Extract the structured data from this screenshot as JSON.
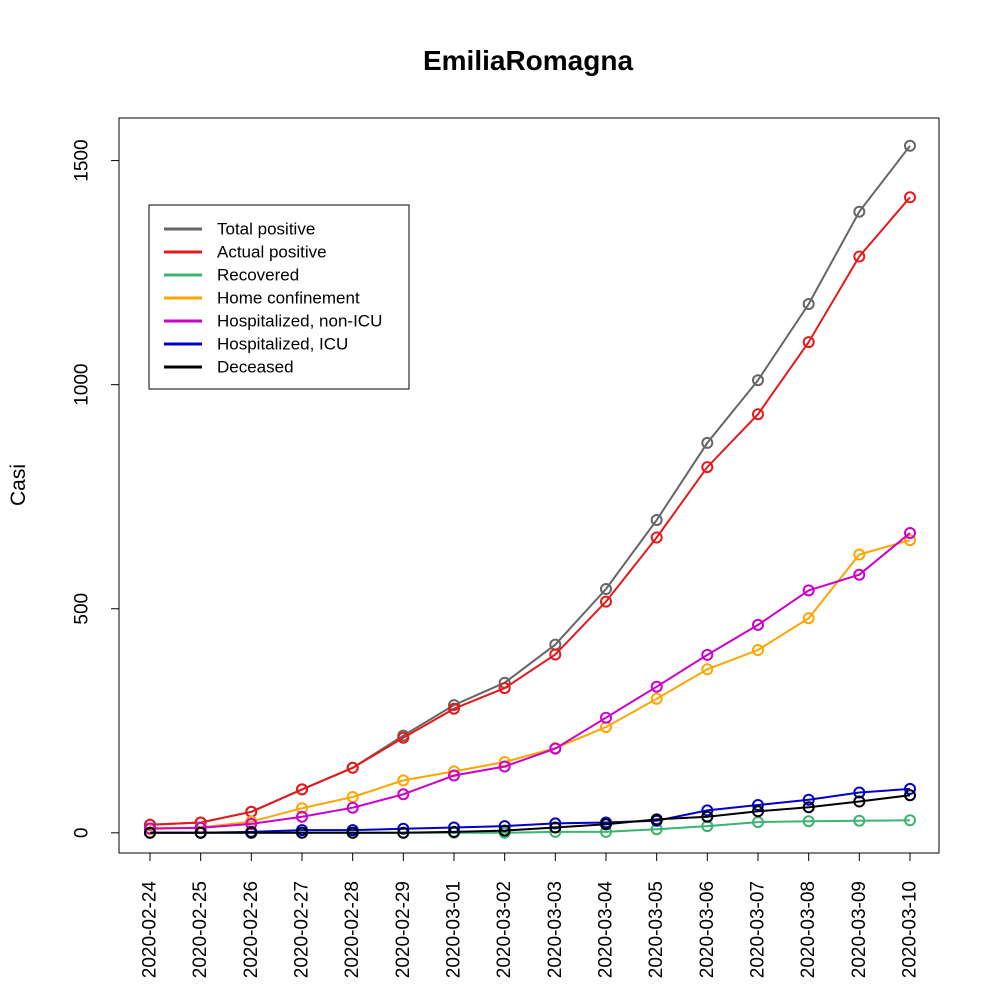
{
  "chart_data": {
    "type": "line",
    "title": "EmiliaRomagna",
    "xlabel": "",
    "ylabel": "Casi",
    "ylim": [
      -45,
      1595
    ],
    "yticks": [
      0,
      500,
      1000,
      1500
    ],
    "grid": false,
    "legend_position": "top-left",
    "x": [
      "2020-02-24",
      "2020-02-25",
      "2020-02-26",
      "2020-02-27",
      "2020-02-28",
      "2020-02-29",
      "2020-03-01",
      "2020-03-02",
      "2020-03-03",
      "2020-03-04",
      "2020-03-05",
      "2020-03-06",
      "2020-03-07",
      "2020-03-08",
      "2020-03-09",
      "2020-03-10"
    ],
    "series": [
      {
        "name": "Total positive",
        "color": "#666666",
        "values": [
          18,
          23,
          47,
          97,
          145,
          217,
          285,
          335,
          420,
          544,
          698,
          870,
          1010,
          1180,
          1386,
          1533
        ]
      },
      {
        "name": "Actual positive",
        "color": "#e41a1c",
        "values": [
          18,
          23,
          47,
          97,
          145,
          212,
          277,
          323,
          398,
          516,
          659,
          816,
          934,
          1095,
          1286,
          1418
        ]
      },
      {
        "name": "Recovered",
        "color": "#3cb371",
        "values": [
          0,
          0,
          0,
          0,
          0,
          0,
          0,
          0,
          2,
          2,
          8,
          15,
          24,
          26,
          27,
          28
        ]
      },
      {
        "name": "Home confinement",
        "color": "#ffa500",
        "values": [
          8,
          12,
          25,
          55,
          80,
          117,
          137,
          158,
          189,
          236,
          299,
          365,
          408,
          479,
          621,
          653
        ]
      },
      {
        "name": "Hospitalized, non-ICU",
        "color": "#cc00cc",
        "values": [
          10,
          11,
          20,
          36,
          56,
          86,
          128,
          148,
          188,
          257,
          326,
          397,
          464,
          541,
          576,
          669
        ]
      },
      {
        "name": "Hospitalized, ICU",
        "color": "#0000cc",
        "values": [
          0,
          0,
          2,
          6,
          6,
          9,
          12,
          15,
          21,
          23,
          27,
          50,
          62,
          74,
          90,
          98
        ]
      },
      {
        "name": "Deceased",
        "color": "#000000",
        "values": [
          0,
          0,
          0,
          0,
          0,
          0,
          2,
          5,
          12,
          19,
          30,
          36,
          48,
          57,
          70,
          84
        ]
      }
    ]
  }
}
